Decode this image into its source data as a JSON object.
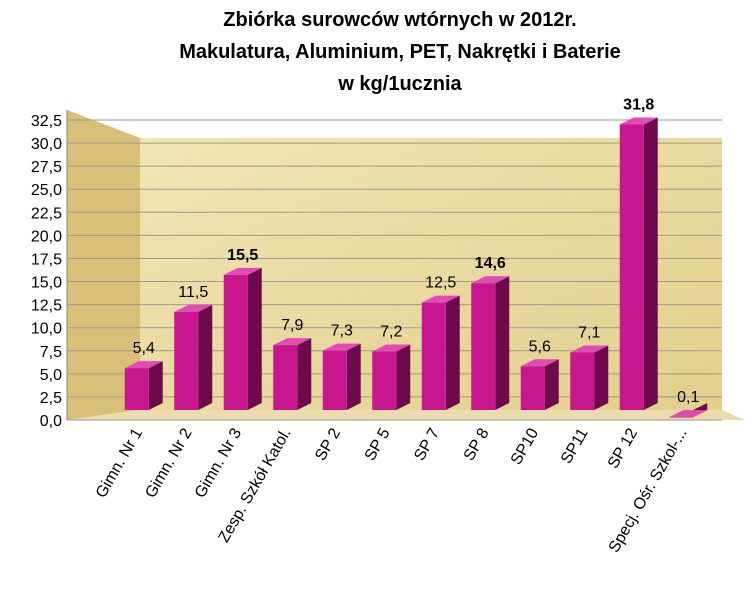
{
  "chart_data": {
    "type": "bar3d",
    "title": [
      "Zbiórka surowców wtórnych w 2012r.",
      "Makulatura, Aluminium,  PET,  Nakrętki i Baterie",
      "w  kg/1ucznia"
    ],
    "categories": [
      "Gimn. Nr 1",
      "Gimn. Nr 2",
      "Gimn. Nr 3",
      "Zesp. Szkół Katol.",
      "SP 2",
      "SP 5",
      "SP 7",
      "SP 8",
      "SP10",
      "SP11",
      "SP 12",
      "Specj. Ośr. Szkol-..."
    ],
    "values": [
      5.4,
      11.5,
      15.5,
      7.9,
      7.3,
      7.2,
      12.5,
      14.6,
      5.6,
      7.1,
      31.8,
      0.1
    ],
    "value_labels": [
      "5,4",
      "11,5",
      "15,5",
      "7,9",
      "7,3",
      "7,2",
      "12,5",
      "14,6",
      "5,6",
      "7,1",
      "31,8",
      "0,1"
    ],
    "value_labels_bold": [
      2,
      7,
      10
    ],
    "color": "#c8168f",
    "ylim": [
      0,
      32.5
    ],
    "yticks": [
      {
        "value": 0,
        "label": "0,0"
      },
      {
        "value": 2.5,
        "label": "2,5"
      },
      {
        "value": 5,
        "label": "5,0"
      },
      {
        "value": 7.5,
        "label": "7,5"
      },
      {
        "value": 10,
        "label": "10,0"
      },
      {
        "value": 12.5,
        "label": "12,5"
      },
      {
        "value": 15,
        "label": "15,0"
      },
      {
        "value": 17.5,
        "label": "17,5"
      },
      {
        "value": 20,
        "label": "20,0"
      },
      {
        "value": 22.5,
        "label": "22,5"
      },
      {
        "value": 25,
        "label": "25,0"
      },
      {
        "value": 27.5,
        "label": "27,5"
      },
      {
        "value": 30,
        "label": "30,0"
      },
      {
        "value": 32.5,
        "label": "32,5"
      }
    ],
    "grid": true
  }
}
